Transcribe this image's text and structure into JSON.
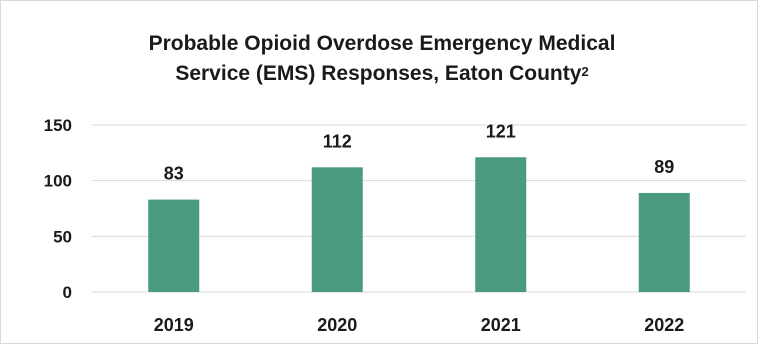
{
  "chart_data": {
    "type": "bar",
    "title_line1": "Probable Opioid Overdose Emergency Medical",
    "title_line2": "Service (EMS) Responses, Eaton County",
    "title_superscript": "2",
    "categories": [
      "2019",
      "2020",
      "2021",
      "2022"
    ],
    "values": [
      83,
      112,
      121,
      89
    ],
    "data_labels": [
      "83",
      "112",
      "121",
      "89"
    ],
    "y_ticks": [
      "0",
      "50",
      "100",
      "150"
    ],
    "ylim": [
      0,
      150
    ],
    "xlabel": "",
    "ylabel": "",
    "grid": true,
    "legend": "none",
    "bar_color": "#4a9a80",
    "grid_color": "#d9d9d9"
  }
}
